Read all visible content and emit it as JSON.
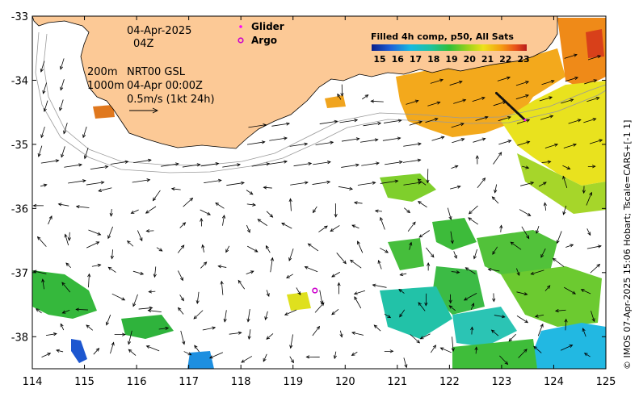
{
  "map": {
    "date": "04-Apr-2025",
    "hour": "04Z",
    "depth_shallow": "200m",
    "depth_deep": "1000m",
    "product": "NRT00 GSL",
    "product_time": "04-Apr 00:00Z",
    "arrow_scale": "0.5m/s (1kt 24h)",
    "legend": {
      "glider": "Glider",
      "argo": "Argo"
    },
    "credit": "© IMOS 07-Apr-2025 15:06 Hobart; Tscale=CARS+[-1 1]",
    "colors": {
      "land": "#fcc996",
      "glider": "#ff00ff",
      "argo": "#cc00cc",
      "arrow": "#000000"
    }
  },
  "colorbar": {
    "title": "Filled 4h comp, p50, All Sats",
    "ticks": [
      "15",
      "16",
      "17",
      "18",
      "19",
      "20",
      "21",
      "22",
      "23"
    ]
  },
  "axes": {
    "x": {
      "min": 114,
      "max": 125,
      "ticks": [
        "114",
        "115",
        "116",
        "117",
        "118",
        "119",
        "120",
        "121",
        "122",
        "123",
        "124",
        "125"
      ]
    },
    "y": {
      "min": -38.5,
      "max": -33,
      "ticks": [
        "-33",
        "-34",
        "-35",
        "-36",
        "-37",
        "-38"
      ]
    }
  },
  "argo": {
    "lon": 119.42,
    "lat": -37.28
  },
  "glider_track": {
    "lon": [
      122.9,
      123.45
    ],
    "lat": [
      -34.2,
      -34.62
    ]
  }
}
